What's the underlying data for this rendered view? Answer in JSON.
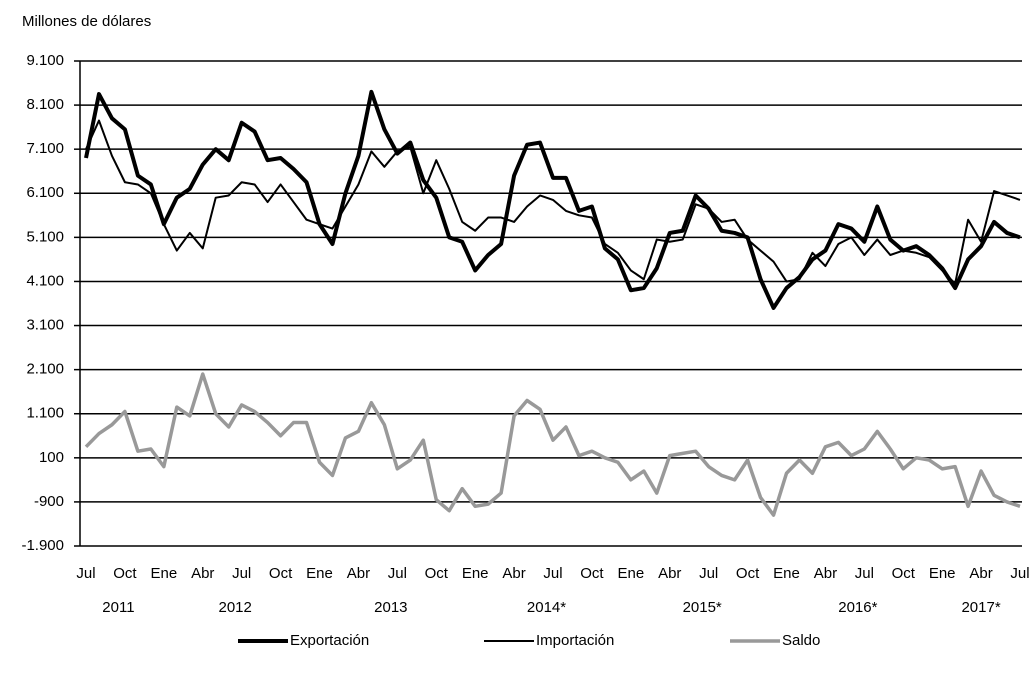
{
  "chart_data": {
    "type": "line",
    "y_label": "Millones de dólares",
    "categories": [
      "Jul",
      null,
      null,
      "Oct",
      null,
      null,
      "Ene",
      null,
      null,
      "Abr",
      null,
      null,
      "Jul",
      null,
      null,
      "Oct",
      null,
      null,
      "Ene",
      null,
      null,
      "Abr",
      null,
      null,
      "Jul",
      null,
      null,
      "Oct",
      null,
      null,
      "Ene",
      null,
      null,
      "Abr",
      null,
      null,
      "Jul",
      null,
      null,
      "Oct",
      null,
      null,
      "Ene",
      null,
      null,
      "Abr",
      null,
      null,
      "Jul",
      null,
      null,
      "Oct",
      null,
      null,
      "Ene",
      null,
      null,
      "Abr",
      null,
      null,
      "Jul",
      null,
      null,
      "Oct",
      null,
      null,
      "Ene",
      null,
      null,
      "Abr",
      null,
      null,
      "Jul"
    ],
    "years": [
      "2011",
      "2012",
      "2013",
      "2014*",
      "2015*",
      "2016*",
      "2017*"
    ],
    "ylim": [
      -1900,
      9100
    ],
    "yticks": [
      {
        "value": -1900,
        "label": "-1.900"
      },
      -900,
      100,
      {
        "value": 1100,
        "label": "1.100"
      },
      {
        "value": 2100,
        "label": "2.100"
      },
      {
        "value": 3100,
        "label": "3.100"
      },
      {
        "value": 4100,
        "label": "4.100"
      },
      {
        "value": 5100,
        "label": "5.100"
      },
      {
        "value": 6100,
        "label": "6.100"
      },
      {
        "value": 7100,
        "label": "7.100"
      },
      {
        "value": 8100,
        "label": "8.100"
      },
      {
        "value": 9100,
        "label": "9.100"
      }
    ],
    "grid": true,
    "legend": "bottom",
    "series": [
      {
        "name": "Exportación",
        "color": "#000000",
        "width": 4,
        "values": [
          6900,
          8350,
          7800,
          7550,
          6500,
          6300,
          5400,
          6000,
          6200,
          6750,
          7100,
          6850,
          7700,
          7500,
          6850,
          6900,
          6650,
          6350,
          5400,
          4950,
          6100,
          6950,
          8400,
          7550,
          7000,
          7250,
          6400,
          6000,
          5100,
          5000,
          4350,
          4700,
          4950,
          6500,
          7200,
          7250,
          6450,
          6450,
          5700,
          5800,
          4850,
          4600,
          3900,
          3950,
          4400,
          5200,
          5250,
          6050,
          5750,
          5250,
          5200,
          5100,
          4150,
          3500,
          3950,
          4200,
          4600,
          4800,
          5400,
          5300,
          5000,
          5800,
          5050,
          4800,
          4900,
          4700,
          4400,
          3950,
          4600,
          4900,
          5450,
          5200,
          5100
        ]
      },
      {
        "name": "Importación",
        "color": "#000000",
        "width": 2,
        "values": [
          7100,
          7750,
          6950,
          6350,
          6300,
          6100,
          5400,
          4800,
          5200,
          4850,
          6000,
          6050,
          6350,
          6300,
          5900,
          6300,
          5900,
          5500,
          5400,
          5300,
          5800,
          6300,
          7050,
          6700,
          7050,
          7150,
          6100,
          6850,
          6200,
          5450,
          5250,
          5550,
          5550,
          5450,
          5800,
          6050,
          5950,
          5700,
          5600,
          5550,
          4950,
          4750,
          4350,
          4150,
          5050,
          5000,
          5050,
          5850,
          5750,
          5450,
          5500,
          5050,
          4800,
          4550,
          4100,
          4150,
          4750,
          4450,
          4950,
          5100,
          4700,
          5050,
          4700,
          4800,
          4750,
          4650,
          4350,
          4050,
          5500,
          5000,
          6150,
          6050,
          5950
        ]
      },
      {
        "name": "Saldo",
        "color": "#999999",
        "width": 3.5,
        "values": [
          350,
          650,
          850,
          1150,
          250,
          300,
          -100,
          1250,
          1050,
          2000,
          1100,
          800,
          1300,
          1150,
          900,
          600,
          900,
          900,
          0,
          -300,
          550,
          700,
          1350,
          850,
          -150,
          50,
          500,
          -850,
          -1100,
          -600,
          -1000,
          -950,
          -700,
          1050,
          1400,
          1200,
          500,
          800,
          150,
          250,
          100,
          0,
          -400,
          -200,
          -700,
          150,
          200,
          250,
          -100,
          -300,
          -400,
          50,
          -800,
          -1200,
          -250,
          50,
          -250,
          350,
          450,
          150,
          300,
          700,
          300,
          -150,
          100,
          50,
          -150,
          -100,
          -1000,
          -200,
          -750,
          -900,
          -1000
        ]
      }
    ]
  }
}
